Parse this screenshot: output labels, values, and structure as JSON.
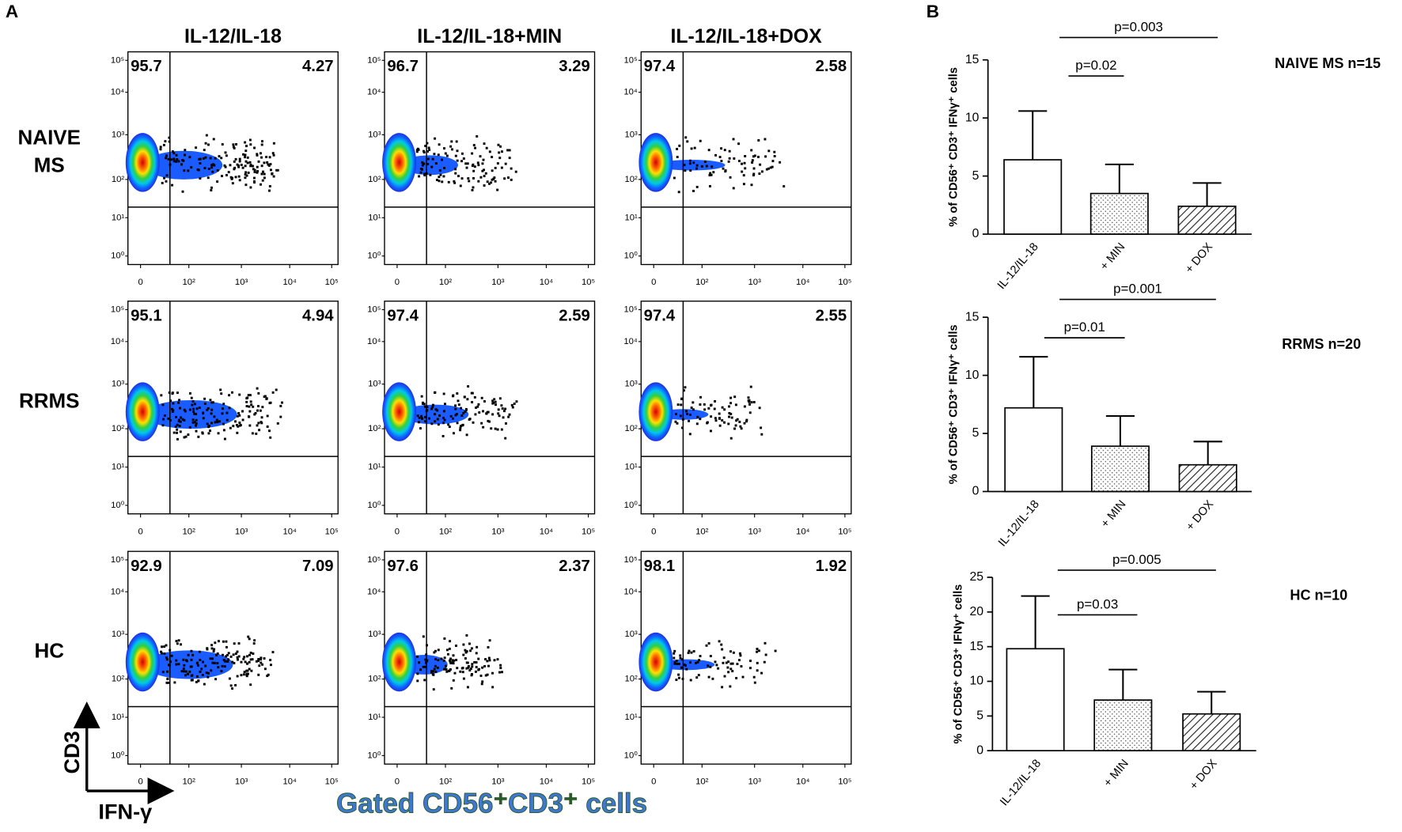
{
  "panel_a": {
    "label": "A",
    "columns": [
      "IL-12/IL-18",
      "IL-12/IL-18+MIN",
      "IL-12/IL-18+DOX"
    ],
    "rows": [
      [
        "NAIVE",
        "MS"
      ],
      [
        "RRMS"
      ],
      [
        "HC"
      ]
    ],
    "quadrants": [
      [
        [
          95.7,
          4.27
        ],
        [
          96.7,
          3.29
        ],
        [
          97.4,
          2.58
        ]
      ],
      [
        [
          95.1,
          4.94
        ],
        [
          97.4,
          2.59
        ],
        [
          97.4,
          2.55
        ]
      ],
      [
        [
          92.9,
          7.09
        ],
        [
          97.6,
          2.37
        ],
        [
          98.1,
          1.92
        ]
      ]
    ],
    "yticks": [
      {
        "value": 100000,
        "label": "10⁵"
      },
      {
        "value": 10000,
        "label": "10⁴"
      },
      {
        "value": 1000,
        "label": "10³"
      },
      {
        "value": 100,
        "label": "10²"
      },
      {
        "value": 10,
        "label": "10¹"
      },
      {
        "value": 1,
        "label": "10⁰"
      }
    ],
    "xticks": [
      0,
      {
        "value": 100,
        "label": "10²"
      },
      {
        "value": 1000,
        "label": "10³"
      },
      {
        "value": 10000,
        "label": "10⁴"
      },
      {
        "value": 100000,
        "label": "10⁵"
      }
    ],
    "y_axis_label": "CD3",
    "x_axis_label": "IFN-γ",
    "caption": "Gated CD56⁺CD3⁺ cells"
  },
  "panel_b_label": "B",
  "chart_data": [
    {
      "type": "bar",
      "title": "NAIVE MS n=15",
      "ylabel": "% of CD56⁺ CD3⁺ IFNγ⁺ cells",
      "categories": [
        "IL-12/IL-18",
        "+ MIN",
        "+ DOX"
      ],
      "values": [
        6.4,
        3.5,
        2.4
      ],
      "errors": [
        4.2,
        2.5,
        2.0
      ],
      "patterns": [
        "none",
        "dots",
        "hatch"
      ],
      "ylim": [
        0,
        15
      ],
      "yticks": [
        0,
        5,
        10,
        15
      ],
      "annotations": [
        "p=0.02",
        "p=0.003"
      ]
    },
    {
      "type": "bar",
      "title": "RRMS n=20",
      "ylabel": "% of CD56⁺ CD3⁺ IFNγ⁺ cells",
      "categories": [
        "IL-12/IL-18",
        "+ MIN",
        "+ DOX"
      ],
      "values": [
        7.2,
        3.9,
        2.3
      ],
      "errors": [
        4.4,
        2.6,
        2.0
      ],
      "patterns": [
        "none",
        "dots",
        "hatch"
      ],
      "ylim": [
        0,
        15
      ],
      "yticks": [
        0,
        5,
        10,
        15
      ],
      "annotations": [
        "p=0.01",
        "p=0.001"
      ]
    },
    {
      "type": "bar",
      "title": "HC n=10",
      "ylabel": "% of CD56⁺ CD3⁺ IFNγ⁺ cells",
      "categories": [
        "IL-12/IL-18",
        "+ MIN",
        "+ DOX"
      ],
      "values": [
        14.7,
        7.3,
        5.3
      ],
      "errors": [
        7.6,
        4.4,
        3.2
      ],
      "patterns": [
        "none",
        "dots",
        "hatch"
      ],
      "ylim": [
        0,
        25
      ],
      "yticks": [
        0,
        5,
        10,
        15,
        20,
        25
      ],
      "annotations": [
        "p=0.03",
        "p=0.005"
      ]
    }
  ]
}
